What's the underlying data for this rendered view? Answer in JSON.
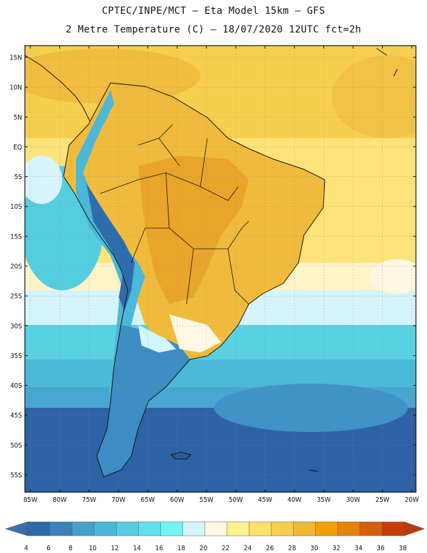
{
  "header": {
    "title_line1": "CPTEC/INPE/MCT –  Eta Model 15km – GFS",
    "title_line2": "2 Metre Temperature (C) – 18/07/2020 12UTC fct=2h"
  },
  "map": {
    "lat_labels": [
      "15N",
      "10N",
      "5N",
      "EQ",
      "5S",
      "10S",
      "15S",
      "20S",
      "25S",
      "30S",
      "35S",
      "40S",
      "45S",
      "50S",
      "55S"
    ],
    "lat_values": [
      15,
      10,
      5,
      0,
      -5,
      -10,
      -15,
      -20,
      -25,
      -30,
      -35,
      -40,
      -45,
      -50,
      -55
    ],
    "lon_labels": [
      "85W",
      "80W",
      "75W",
      "70W",
      "65W",
      "60W",
      "55W",
      "50W",
      "45W",
      "40W",
      "35W",
      "30W",
      "25W",
      "20W"
    ],
    "lon_values": [
      -85,
      -80,
      -75,
      -70,
      -65,
      -60,
      -55,
      -50,
      -45,
      -40,
      -35,
      -30,
      -25,
      -20
    ]
  },
  "colorbar": {
    "labels": [
      "4",
      "6",
      "8",
      "10",
      "12",
      "14",
      "16",
      "18",
      "20",
      "22",
      "24",
      "26",
      "28",
      "30",
      "32",
      "34",
      "36",
      "38"
    ],
    "under_color": "#3a6fae",
    "over_color": "#b83a10",
    "colors": [
      "#2e6aa8",
      "#3a82bd",
      "#45a0cc",
      "#4bb8d9",
      "#55cde1",
      "#5fe0ea",
      "#6ff5f5",
      "#d2f6fb",
      "#fff8e4",
      "#fff28c",
      "#ffe06a",
      "#f7cd4e",
      "#f0b830",
      "#f2a000",
      "#e8820f",
      "#d85f0a",
      "#c53e0a"
    ]
  },
  "legend_colors": {
    "cold_ocean": "#2b5ea0",
    "cool_ocean": "#4ec4dd",
    "warm_land": "#f0bb3c",
    "hot_land": "#e9a52a",
    "tropical_ocean": "#fbdf63",
    "border": "#111111"
  }
}
